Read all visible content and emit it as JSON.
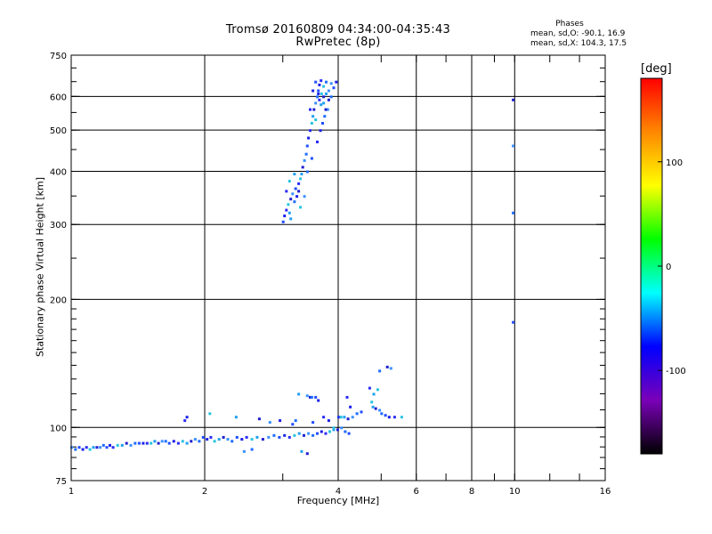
{
  "header": {
    "title_line1": "Tromsø 20160809 04:34:00-04:35:43",
    "title_line2": "RwPretec (8p)",
    "phase_label": "Phases",
    "stat_o": "mean, sd,O: -90.1, 16.9",
    "stat_x": "mean, sd,X: 104.3, 17.5"
  },
  "colorbar": {
    "unit_label": "[deg]",
    "ticks": [
      {
        "value": 100,
        "label": "100"
      },
      {
        "value": 0,
        "label": "0"
      },
      {
        "value": -100,
        "label": "-100"
      }
    ],
    "range": [
      -180,
      180
    ],
    "colors": [
      "#000000",
      "#7a00b8",
      "#0000ff",
      "#00ffff",
      "#00ff00",
      "#ffff00",
      "#ff8800",
      "#ff0000"
    ]
  },
  "chart_data": {
    "type": "scatter",
    "title": "Tromsø 20160809 04:34:00-04:35:43",
    "subtitle": "RwPretec (8p)",
    "xlabel": "Frequency [MHz]",
    "ylabel": "Stationary phase Virtual Height [km]",
    "x_scale": "log",
    "y_scale": "log",
    "xlim": [
      1,
      16
    ],
    "ylim": [
      75,
      750
    ],
    "x_ticks": [
      1,
      2,
      4,
      6,
      8,
      10,
      16
    ],
    "x_tick_labels": [
      "1",
      "2",
      "4",
      "6",
      "8",
      "10",
      "16"
    ],
    "x_minor_ticks": [
      3,
      5,
      7,
      9,
      12,
      14
    ],
    "y_ticks": [
      75,
      100,
      200,
      300,
      400,
      500,
      600,
      750
    ],
    "y_tick_labels": [
      "75",
      "100",
      "200",
      "300",
      "400",
      "500",
      "600",
      "750"
    ],
    "x_grid": [
      2,
      4,
      6,
      8,
      10
    ],
    "y_grid": [
      100,
      200,
      300,
      400,
      500,
      600
    ],
    "series": [
      {
        "points": [
          [
            1.0,
            90
          ],
          [
            1.02,
            89
          ],
          [
            1.04,
            90
          ],
          [
            1.06,
            89
          ],
          [
            1.08,
            90
          ],
          [
            1.1,
            89
          ],
          [
            1.12,
            90
          ],
          [
            1.14,
            90
          ],
          [
            1.16,
            90
          ],
          [
            1.18,
            91
          ],
          [
            1.2,
            90
          ],
          [
            1.22,
            91
          ],
          [
            1.24,
            90
          ],
          [
            1.27,
            91
          ],
          [
            1.3,
            91
          ],
          [
            1.33,
            92
          ],
          [
            1.36,
            91
          ],
          [
            1.39,
            92
          ],
          [
            1.42,
            92
          ],
          [
            1.45,
            92
          ],
          [
            1.48,
            92
          ],
          [
            1.51,
            92
          ],
          [
            1.54,
            93
          ],
          [
            1.57,
            92
          ],
          [
            1.6,
            93
          ],
          [
            1.63,
            93
          ],
          [
            1.66,
            92
          ],
          [
            1.7,
            93
          ],
          [
            1.74,
            92
          ],
          [
            1.78,
            93
          ],
          [
            1.82,
            92
          ],
          [
            1.86,
            93
          ],
          [
            1.9,
            94
          ],
          [
            1.94,
            93
          ],
          [
            1.98,
            95
          ],
          [
            2.02,
            94
          ],
          [
            2.06,
            95
          ],
          [
            2.1,
            93
          ],
          [
            2.15,
            94
          ],
          [
            2.2,
            95
          ],
          [
            2.25,
            94
          ],
          [
            2.3,
            93
          ],
          [
            2.36,
            95
          ],
          [
            2.42,
            94
          ],
          [
            2.48,
            95
          ],
          [
            2.55,
            94
          ],
          [
            2.62,
            95
          ],
          [
            2.7,
            94
          ],
          [
            2.78,
            95
          ],
          [
            2.86,
            96
          ],
          [
            2.94,
            95
          ],
          [
            3.02,
            96
          ],
          [
            3.1,
            95
          ],
          [
            3.18,
            96
          ],
          [
            3.26,
            97
          ],
          [
            3.34,
            96
          ],
          [
            3.42,
            97
          ],
          [
            3.5,
            96
          ],
          [
            3.58,
            97
          ],
          [
            3.66,
            98
          ],
          [
            3.74,
            97
          ],
          [
            3.82,
            98
          ],
          [
            3.9,
            99
          ],
          [
            3.98,
            99
          ],
          [
            4.06,
            100
          ],
          [
            4.14,
            98
          ],
          [
            4.22,
            97
          ],
          [
            1.82,
            106
          ],
          [
            1.8,
            104
          ],
          [
            2.05,
            108
          ],
          [
            2.35,
            106
          ],
          [
            2.65,
            105
          ],
          [
            2.8,
            103
          ],
          [
            3.2,
            104
          ],
          [
            3.5,
            103
          ],
          [
            3.8,
            104
          ],
          [
            4.0,
            106
          ],
          [
            4.05,
            106
          ],
          [
            4.12,
            106
          ],
          [
            4.2,
            105
          ],
          [
            4.3,
            106
          ],
          [
            4.4,
            108
          ],
          [
            4.5,
            109
          ],
          [
            4.25,
            112
          ],
          [
            4.18,
            118
          ],
          [
            4.75,
            115
          ],
          [
            4.78,
            112
          ],
          [
            4.85,
            111
          ],
          [
            4.95,
            110
          ],
          [
            5.0,
            108
          ],
          [
            5.1,
            107
          ],
          [
            5.2,
            106
          ],
          [
            5.35,
            106
          ],
          [
            5.55,
            106
          ],
          [
            4.8,
            120
          ],
          [
            3.45,
            118
          ],
          [
            3.4,
            119
          ],
          [
            3.48,
            118
          ],
          [
            3.55,
            118
          ],
          [
            3.6,
            116
          ],
          [
            4.7,
            124
          ],
          [
            4.9,
            123
          ],
          [
            3.25,
            120
          ],
          [
            5.15,
            139
          ],
          [
            5.25,
            138
          ],
          [
            4.95,
            136
          ],
          [
            3.15,
            102
          ],
          [
            2.95,
            104
          ],
          [
            3.7,
            106
          ],
          [
            3.9,
            100
          ],
          [
            3.3,
            88
          ],
          [
            3.4,
            87
          ],
          [
            2.45,
            88
          ],
          [
            2.55,
            89
          ],
          [
            3.0,
            305
          ],
          [
            3.02,
            315
          ],
          [
            3.05,
            325
          ],
          [
            3.08,
            335
          ],
          [
            3.1,
            320
          ],
          [
            3.12,
            345
          ],
          [
            3.15,
            355
          ],
          [
            3.18,
            340
          ],
          [
            3.2,
            365
          ],
          [
            3.22,
            350
          ],
          [
            3.25,
            375
          ],
          [
            3.28,
            385
          ],
          [
            3.3,
            395
          ],
          [
            3.32,
            410
          ],
          [
            3.35,
            425
          ],
          [
            3.38,
            440
          ],
          [
            3.4,
            460
          ],
          [
            3.42,
            480
          ],
          [
            3.45,
            500
          ],
          [
            3.48,
            520
          ],
          [
            3.5,
            540
          ],
          [
            3.52,
            560
          ],
          [
            3.55,
            580
          ],
          [
            3.58,
            600
          ],
          [
            3.6,
            620
          ],
          [
            3.62,
            640
          ],
          [
            3.65,
            655
          ],
          [
            3.7,
            635
          ],
          [
            3.75,
            610
          ],
          [
            3.8,
            590
          ],
          [
            3.78,
            560
          ],
          [
            3.72,
            540
          ],
          [
            3.68,
            520
          ],
          [
            3.64,
            500
          ],
          [
            3.58,
            470
          ],
          [
            3.55,
            530
          ],
          [
            3.65,
            575
          ],
          [
            3.7,
            600
          ],
          [
            3.85,
            645
          ],
          [
            3.75,
            650
          ],
          [
            3.55,
            650
          ],
          [
            3.5,
            620
          ],
          [
            3.45,
            560
          ],
          [
            3.28,
            330
          ],
          [
            3.12,
            310
          ],
          [
            3.25,
            360
          ],
          [
            3.35,
            350
          ],
          [
            3.4,
            400
          ],
          [
            3.48,
            430
          ],
          [
            3.6,
            610
          ],
          [
            3.62,
            590
          ],
          [
            3.66,
            610
          ],
          [
            3.7,
            580
          ],
          [
            3.74,
            560
          ],
          [
            3.8,
            620
          ],
          [
            3.85,
            600
          ],
          [
            3.9,
            630
          ],
          [
            3.95,
            650
          ],
          [
            3.05,
            360
          ],
          [
            3.1,
            380
          ],
          [
            3.18,
            395
          ],
          [
            9.9,
            590
          ],
          [
            9.9,
            460
          ],
          [
            9.9,
            320
          ],
          [
            9.9,
            177
          ]
        ]
      }
    ]
  }
}
